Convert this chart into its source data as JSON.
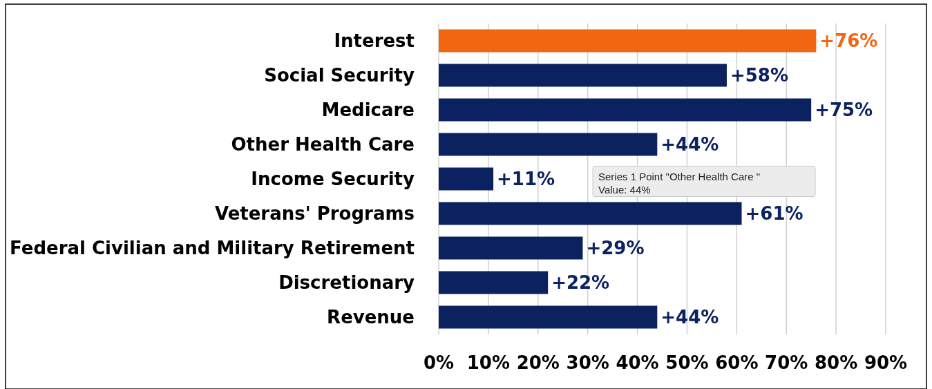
{
  "chart_data": {
    "type": "bar",
    "orientation": "horizontal",
    "categories": [
      "Interest",
      "Social Security",
      "Medicare",
      "Other Health Care",
      "Income Security",
      "Veterans' Programs",
      "Federal Civilian and Military Retirement",
      "Discretionary",
      "Revenue"
    ],
    "values": [
      76,
      58,
      75,
      44,
      11,
      61,
      29,
      22,
      44
    ],
    "colors": [
      "#f26511",
      "#0b2160",
      "#0b2160",
      "#0b2160",
      "#0b2160",
      "#0b2160",
      "#0b2160",
      "#0b2160",
      "#0b2160"
    ],
    "value_labels": [
      "+76%",
      "+58%",
      "+75%",
      "+44%",
      "+11%",
      "+61%",
      "+29%",
      "+22%",
      "+44%"
    ],
    "xlim": [
      0,
      90
    ],
    "xticks": [
      {
        "value": 0,
        "label": "0%"
      },
      {
        "value": 10,
        "label": "10%"
      },
      {
        "value": 20,
        "label": "20%"
      },
      {
        "value": 30,
        "label": "30%"
      },
      {
        "value": 40,
        "label": "40%"
      },
      {
        "value": 50,
        "label": "50%"
      },
      {
        "value": 60,
        "label": "60%"
      },
      {
        "value": 70,
        "label": "70%"
      },
      {
        "value": 80,
        "label": "80%"
      },
      {
        "value": 90,
        "label": "90%"
      }
    ],
    "grid": "x",
    "annotations": [
      "Series 1 Point \"Other Health Care \"",
      "Value: 44%"
    ]
  }
}
